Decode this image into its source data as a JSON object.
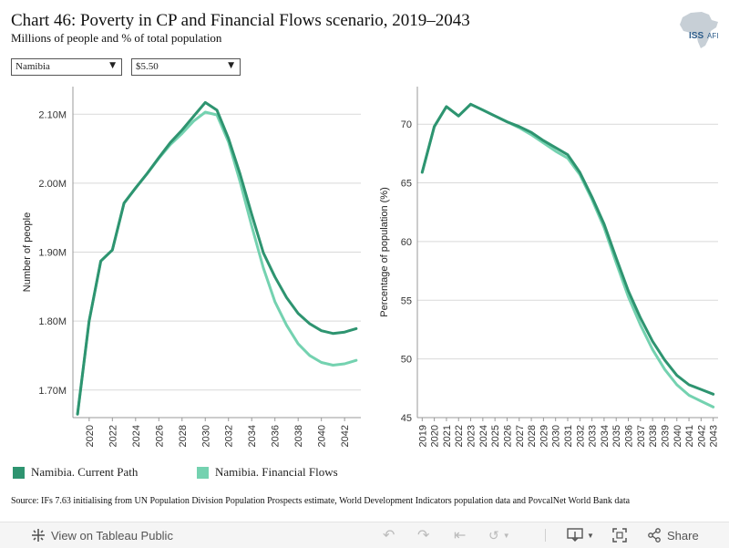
{
  "header": {
    "title": "Chart 46: Poverty in CP and Financial Flows scenario, 2019–2043",
    "subtitle": "Millions of people and % of total population",
    "logo_text": "ISS",
    "logo_text2": "AFI"
  },
  "filters": {
    "country": "Namibia",
    "threshold": "$5.50"
  },
  "colors": {
    "current_path": "#2e9470",
    "financial_flows": "#74d2b0",
    "grid": "#d9d9d9",
    "axis": "#999999"
  },
  "legend": {
    "current_path": "Namibia. Current Path",
    "financial_flows": "Namibia. Financial Flows"
  },
  "source": "Source: IFs 7.63 initialising from UN Population Division Population Prospects estimate, World Development Indicators population data and PovcalNet World Bank data",
  "toolbar": {
    "view_label": "View on Tableau Public",
    "share_label": "Share"
  },
  "chart_data": [
    {
      "type": "line",
      "ylabel": "Number of people",
      "xlabel": "",
      "x": [
        2019,
        2020,
        2021,
        2022,
        2023,
        2024,
        2025,
        2026,
        2027,
        2028,
        2029,
        2030,
        2031,
        2032,
        2033,
        2034,
        2035,
        2036,
        2037,
        2038,
        2039,
        2040,
        2041,
        2042,
        2043
      ],
      "xticks": [
        2020,
        2022,
        2024,
        2026,
        2028,
        2030,
        2032,
        2034,
        2036,
        2038,
        2040,
        2042
      ],
      "xlim": [
        2018.6,
        2043.4
      ],
      "yticks": [
        1.7,
        1.8,
        1.9,
        2.0,
        2.1
      ],
      "ytick_labels": [
        "1.70M",
        "1.80M",
        "1.90M",
        "2.00M",
        "2.10M"
      ],
      "ylim": [
        1.66,
        2.14
      ],
      "series": [
        {
          "name": "Namibia. Current Path",
          "color_key": "current_path",
          "values": [
            1.665,
            1.8,
            1.887,
            1.903,
            1.971,
            1.993,
            2.014,
            2.037,
            2.059,
            2.077,
            2.097,
            2.117,
            2.106,
            2.065,
            2.013,
            1.955,
            1.899,
            1.864,
            1.834,
            1.811,
            1.796,
            1.786,
            1.782,
            1.784,
            1.789
          ]
        },
        {
          "name": "Namibia. Financial Flows",
          "color_key": "financial_flows",
          "values": [
            1.665,
            1.8,
            1.887,
            1.903,
            1.971,
            1.993,
            2.014,
            2.036,
            2.056,
            2.072,
            2.09,
            2.103,
            2.099,
            2.06,
            2.002,
            1.938,
            1.877,
            1.828,
            1.794,
            1.767,
            1.75,
            1.74,
            1.736,
            1.738,
            1.743
          ]
        }
      ]
    },
    {
      "type": "line",
      "ylabel": "Percentage of population (%)",
      "xlabel": "",
      "x": [
        2019,
        2020,
        2021,
        2022,
        2023,
        2024,
        2025,
        2026,
        2027,
        2028,
        2029,
        2030,
        2031,
        2032,
        2033,
        2034,
        2035,
        2036,
        2037,
        2038,
        2039,
        2040,
        2041,
        2042,
        2043
      ],
      "xticks": [
        2019,
        2020,
        2021,
        2022,
        2023,
        2024,
        2025,
        2026,
        2027,
        2028,
        2029,
        2030,
        2031,
        2032,
        2033,
        2034,
        2035,
        2036,
        2037,
        2038,
        2039,
        2040,
        2041,
        2042,
        2043
      ],
      "xlim": [
        2018.6,
        2043.4
      ],
      "yticks": [
        45,
        50,
        55,
        60,
        65,
        70
      ],
      "ytick_labels": [
        "45",
        "50",
        "55",
        "60",
        "65",
        "70"
      ],
      "ylim": [
        45,
        73.2
      ],
      "series": [
        {
          "name": "Namibia. Current Path",
          "color_key": "current_path",
          "values": [
            65.9,
            69.8,
            71.5,
            70.7,
            71.7,
            71.2,
            70.7,
            70.2,
            69.8,
            69.3,
            68.6,
            68.0,
            67.4,
            65.9,
            63.8,
            61.5,
            58.6,
            55.8,
            53.5,
            51.5,
            49.9,
            48.6,
            47.8,
            47.4,
            47.0
          ]
        },
        {
          "name": "Namibia. Financial Flows",
          "color_key": "financial_flows",
          "values": [
            65.9,
            69.8,
            71.5,
            70.7,
            71.7,
            71.2,
            70.7,
            70.2,
            69.7,
            69.1,
            68.4,
            67.7,
            67.1,
            65.7,
            63.6,
            61.2,
            58.2,
            55.3,
            52.9,
            50.8,
            49.1,
            47.8,
            46.9,
            46.4,
            45.9
          ]
        }
      ]
    }
  ]
}
